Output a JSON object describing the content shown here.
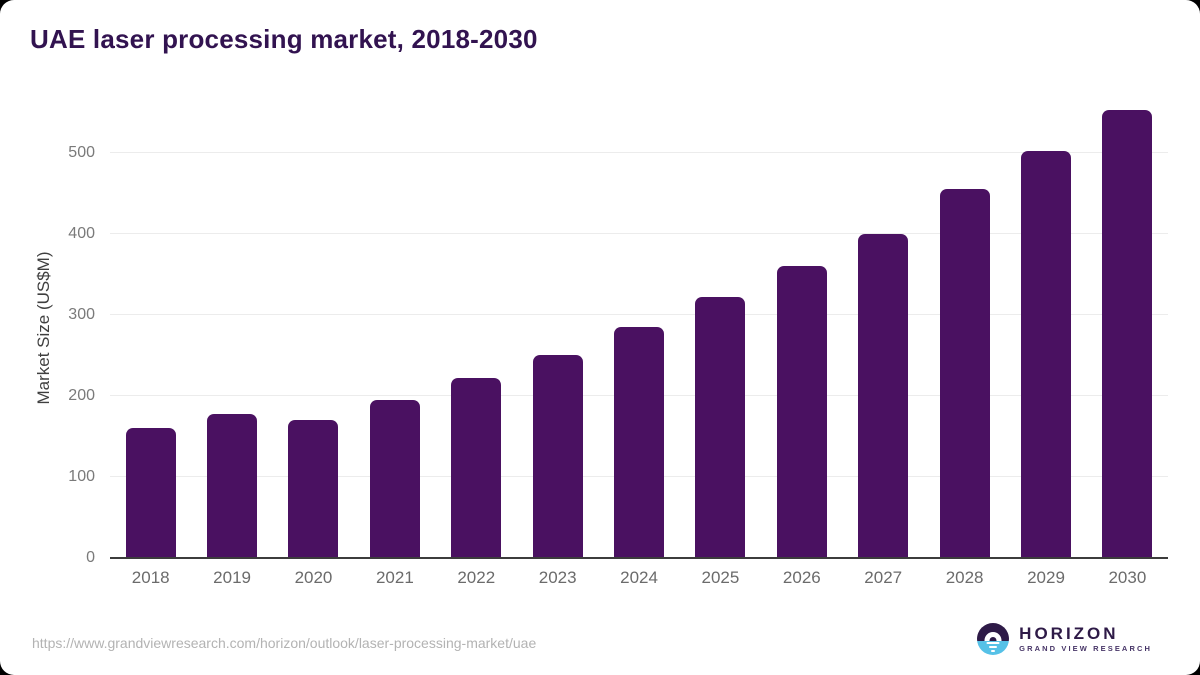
{
  "title": "UAE laser processing market, 2018-2030",
  "chart_data": {
    "type": "bar",
    "title": "UAE laser processing market, 2018-2030",
    "categories": [
      "2018",
      "2019",
      "2020",
      "2021",
      "2022",
      "2023",
      "2024",
      "2025",
      "2026",
      "2027",
      "2028",
      "2029",
      "2030"
    ],
    "values": [
      160,
      178,
      170,
      195,
      222,
      251,
      285,
      322,
      360,
      400,
      456,
      502,
      553
    ],
    "xlabel": "",
    "ylabel": "Market Size (US$M)",
    "yticks": [
      0,
      100,
      200,
      300,
      400,
      500
    ],
    "ylim": [
      0,
      568
    ],
    "grid": "horizontal",
    "legend": "none",
    "colors": {
      "bar": "#4a1161",
      "title": "#321350",
      "gridline": "#ececec",
      "axis_line": "#3c3c3c",
      "tick_label": "#7a7a7a"
    }
  },
  "footer": {
    "source_url": "https://www.grandviewresearch.com/horizon/outlook/laser-processing-market/uae",
    "logo": {
      "name": "HORIZON",
      "subtitle": "GRAND VIEW RESEARCH",
      "icon": "horizon-sun-over-water-icon",
      "purple": "#2e1a47",
      "blue": "#56c1e7"
    }
  }
}
